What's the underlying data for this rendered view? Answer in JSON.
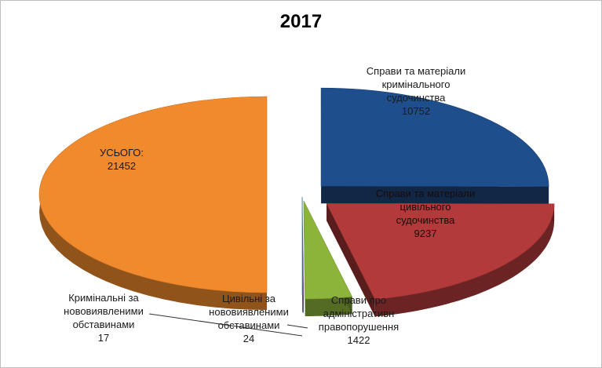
{
  "chart_data": {
    "type": "pie",
    "title": "2017",
    "slices": [
      {
        "label": "Справи та матеріали кримінального судочинства",
        "value": 10752,
        "color": "#1f4e8c"
      },
      {
        "label": "Справи та матеріали цивільного судочинства",
        "value": 9237,
        "color": "#b33a3a"
      },
      {
        "label": "Справи про адміністративні правопорушення",
        "value": 1422,
        "color": "#8cb33a"
      },
      {
        "label": "Цивільні за нововиявленими обставинами",
        "value": 24,
        "color": "#6a4fa0"
      },
      {
        "label": "Кримінальні за нововиявленими обставинами",
        "value": 17,
        "color": "#2f8fa8"
      },
      {
        "label": "УСЬОГО:",
        "value": 21452,
        "color": "#f08a2c"
      }
    ],
    "labels": {
      "crim": {
        "lines": [
          "Справи та матеріали",
          "кримінального",
          "судочинства"
        ],
        "value": "10752"
      },
      "civ": {
        "lines": [
          "Справи та матеріали",
          "цивільного",
          "судочинства"
        ],
        "value": "9237"
      },
      "adm": {
        "lines": [
          "Справи про",
          "адміністративн",
          "правопорушення"
        ],
        "value": "1422"
      },
      "civnew": {
        "lines": [
          "Цивільні за",
          "нововиявленими",
          "обставинами"
        ],
        "value": "24"
      },
      "crimnew": {
        "lines": [
          "Кримінальні за",
          "нововиявленими",
          "обставинами"
        ],
        "value": "17"
      },
      "total": {
        "lines": [
          "УСЬОГО:"
        ],
        "value": "21452"
      }
    }
  }
}
